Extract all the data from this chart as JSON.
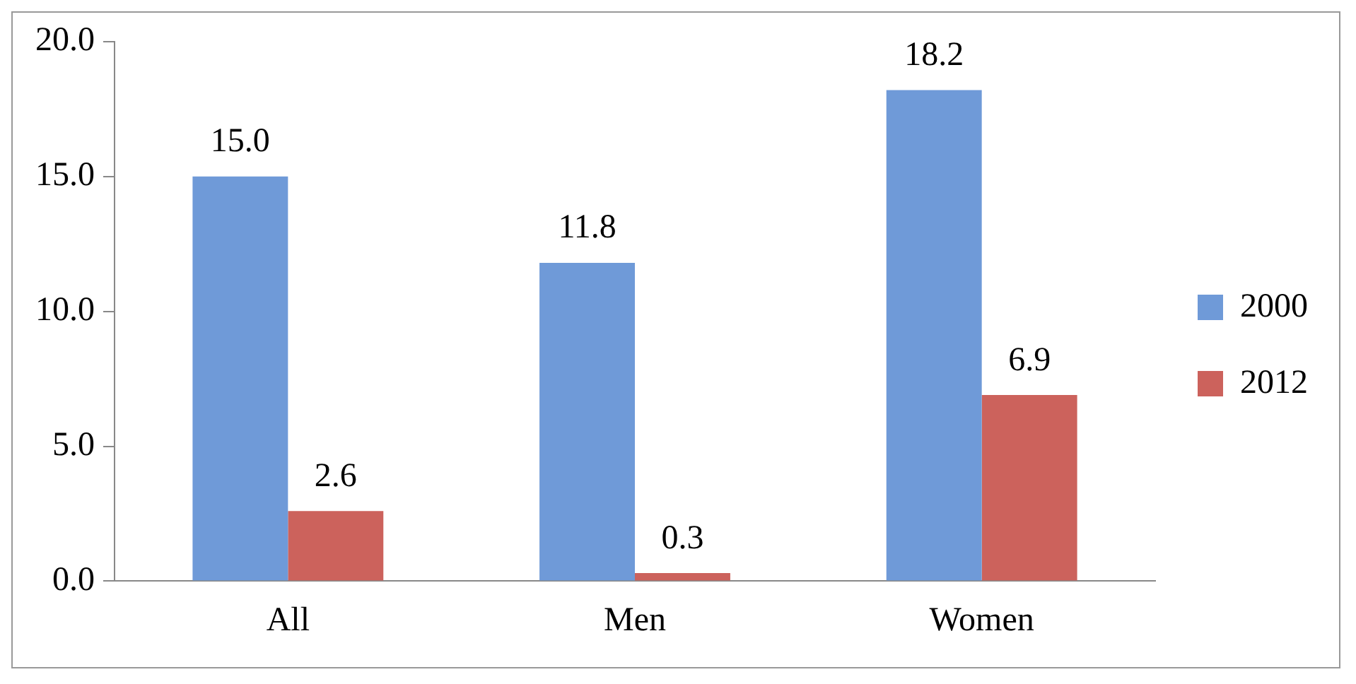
{
  "chart_data": {
    "type": "bar",
    "categories": [
      "All",
      "Men",
      "Women"
    ],
    "series": [
      {
        "name": "2000",
        "color": "#6f9ad8",
        "values": [
          15.0,
          11.8,
          18.2
        ],
        "value_labels": [
          "15.0",
          "11.8",
          "18.2"
        ]
      },
      {
        "name": "2012",
        "color": "#cc625c",
        "values": [
          2.6,
          0.3,
          6.9
        ],
        "value_labels": [
          "2.6",
          "0.3",
          "6.9"
        ]
      }
    ],
    "ylim": [
      0,
      20
    ],
    "yticks": [
      {
        "value": 0,
        "label": "0.0"
      },
      {
        "value": 5,
        "label": "5.0"
      },
      {
        "value": 10,
        "label": "10.0"
      },
      {
        "value": 15,
        "label": "15.0"
      },
      {
        "value": 20,
        "label": "20.0"
      }
    ],
    "grid": false,
    "legend": "right"
  }
}
